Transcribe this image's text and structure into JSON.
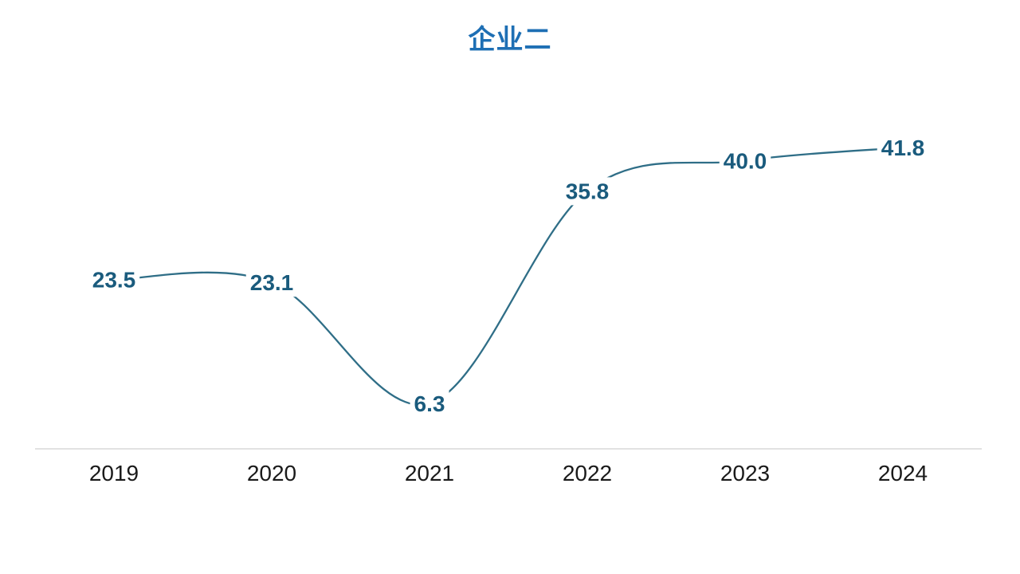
{
  "chart_data": {
    "type": "line",
    "title": "企业二",
    "categories": [
      "2019",
      "2020",
      "2021",
      "2022",
      "2023",
      "2024"
    ],
    "series": [
      {
        "name": "企业二",
        "values": [
          23.5,
          23.1,
          6.3,
          35.8,
          40.0,
          41.8
        ],
        "labels": [
          "23.5",
          "23.1",
          "6.3",
          "35.8",
          "40.0",
          "41.8"
        ]
      }
    ],
    "xlabel": "",
    "ylabel": "",
    "ylim": [
      0,
      50
    ],
    "grid": false,
    "legend": "none",
    "smooth": true,
    "data_labels_visible": true,
    "colors": {
      "title": "#1E6FB4",
      "line": "#2F6E87",
      "data_label": "#1A5B7D",
      "tick_label": "#1a1a1a",
      "axis_line": "#D9D9D9",
      "background": "#FFFFFF"
    }
  }
}
